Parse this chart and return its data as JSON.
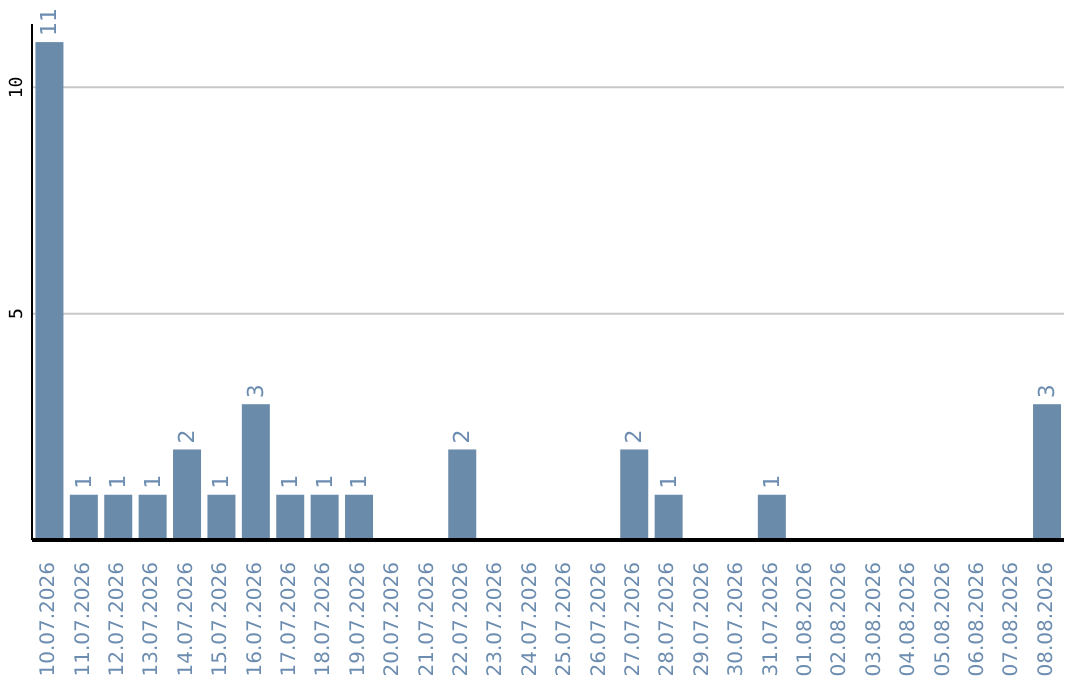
{
  "chart_data": {
    "type": "bar",
    "categories": [
      "10.07.2026",
      "11.07.2026",
      "12.07.2026",
      "13.07.2026",
      "14.07.2026",
      "15.07.2026",
      "16.07.2026",
      "17.07.2026",
      "18.07.2026",
      "19.07.2026",
      "20.07.2026",
      "21.07.2026",
      "22.07.2026",
      "23.07.2026",
      "24.07.2026",
      "25.07.2026",
      "26.07.2026",
      "27.07.2026",
      "28.07.2026",
      "29.07.2026",
      "30.07.2026",
      "31.07.2026",
      "01.08.2026",
      "02.08.2026",
      "03.08.2026",
      "04.08.2026",
      "05.08.2026",
      "06.08.2026",
      "07.08.2026",
      "08.08.2026"
    ],
    "values": [
      11,
      1,
      1,
      1,
      2,
      1,
      3,
      1,
      1,
      1,
      0,
      0,
      2,
      0,
      0,
      0,
      0,
      2,
      1,
      0,
      0,
      1,
      0,
      0,
      0,
      0,
      0,
      0,
      0,
      3
    ],
    "value_labels": [
      "11",
      "1",
      "1",
      "1",
      "2",
      "1",
      "3",
      "1",
      "1",
      "1",
      null,
      null,
      "2",
      null,
      null,
      null,
      null,
      "2",
      "1",
      null,
      null,
      "1",
      null,
      null,
      null,
      null,
      null,
      null,
      null,
      "3"
    ],
    "color": "#6b8bab",
    "ylim": [
      0,
      11.4
    ],
    "yticks": [
      5,
      10
    ],
    "grid": "y"
  }
}
